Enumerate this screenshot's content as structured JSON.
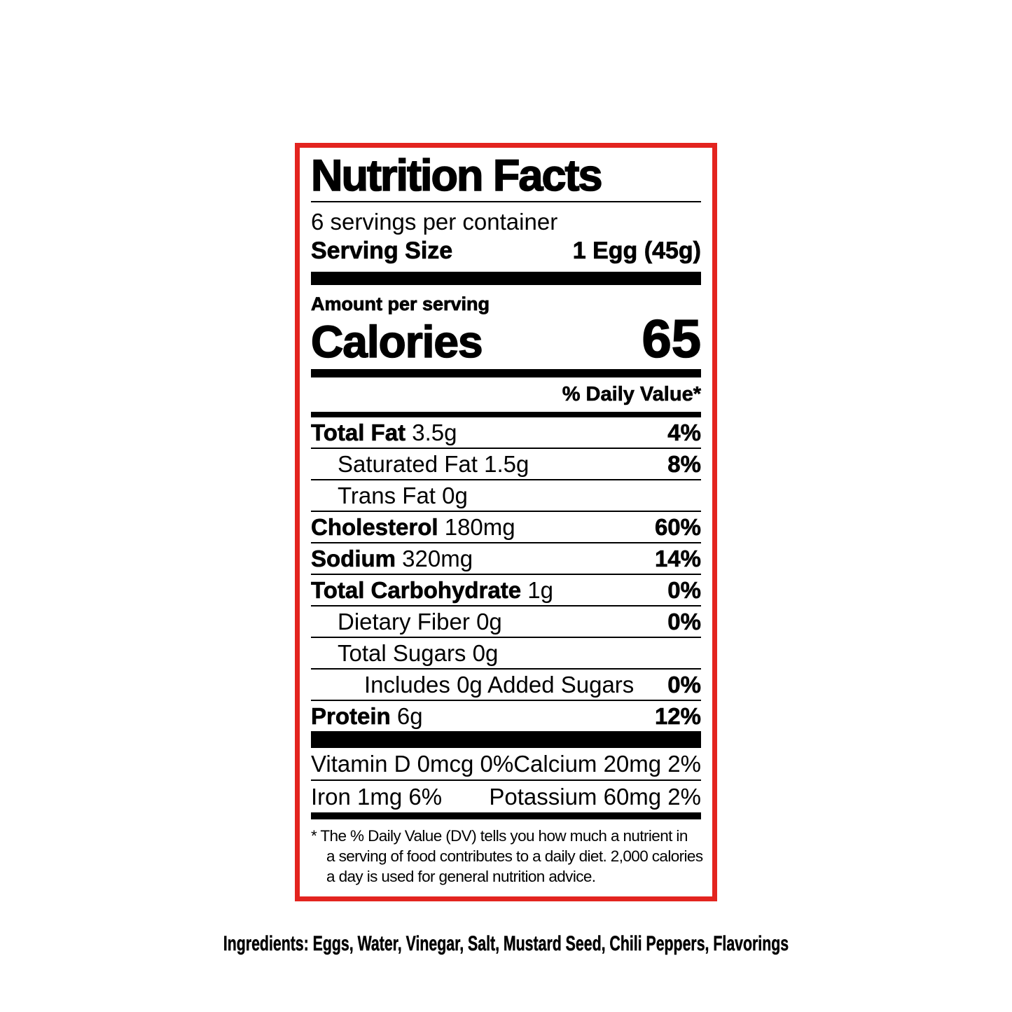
{
  "label": {
    "border_color": "#e3241f",
    "title": "Nutrition Facts",
    "servings_per_container": "6 servings per container",
    "serving_size_label": "Serving Size",
    "serving_size_value": "1 Egg (45g)",
    "amount_per_serving": "Amount per serving",
    "calories_label": "Calories",
    "calories_value": "65",
    "daily_value_header": "% Daily Value*",
    "nutrients": [
      {
        "name": "Total Fat",
        "amount": "3.5g",
        "dv": "4%"
      },
      {
        "name": "Saturated Fat",
        "amount": "1.5g",
        "dv": "8%"
      },
      {
        "name": "Trans Fat",
        "amount": "0g",
        "dv": ""
      },
      {
        "name": "Cholesterol",
        "amount": "180mg",
        "dv": "60%"
      },
      {
        "name": "Sodium",
        "amount": "320mg",
        "dv": "14%"
      },
      {
        "name": "Total Carbohydrate",
        "amount": "1g",
        "dv": "0%"
      },
      {
        "name": "Dietary Fiber",
        "amount": "0g",
        "dv": "0%"
      },
      {
        "name": "Total Sugars",
        "amount": "0g",
        "dv": ""
      },
      {
        "name": "Includes 0g Added Sugars",
        "amount": "",
        "dv": "0%"
      },
      {
        "name": "Protein",
        "amount": "6g",
        "dv": "12%"
      }
    ],
    "micronutrients": [
      {
        "left": "Vitamin D 0mcg 0%",
        "right": "Calcium 20mg 2%"
      },
      {
        "left": "Iron 1mg 6%",
        "right": "Potassium 60mg 2%"
      }
    ],
    "footnote_lines": [
      "* The % Daily Value (DV) tells you how much a nutrient in",
      "a serving of food contributes to a daily diet. 2,000 calories",
      "a day is used for general nutrition advice."
    ]
  },
  "ingredients": "Ingredients: Eggs, Water, Vinegar, Salt, Mustard Seed, Chili Peppers, Flavorings"
}
